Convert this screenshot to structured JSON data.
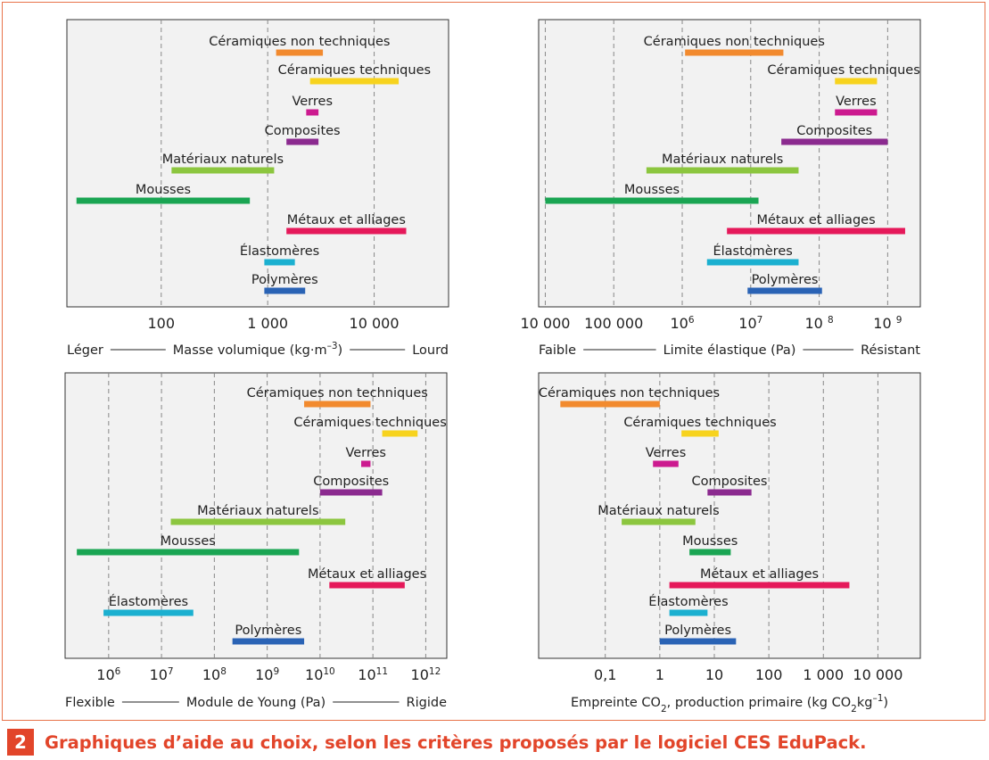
{
  "caption": {
    "number": "2",
    "text": "Graphiques d’aide au choix, selon les critères proposés par le logiciel CES EduPack."
  },
  "chart_data": [
    {
      "type": "bar",
      "orientation": "horizontal-range",
      "log_scale": true,
      "grid": true,
      "xlim": [
        13,
        50000
      ],
      "ticks": [
        {
          "value": 100,
          "label": "100"
        },
        {
          "value": 1000,
          "label": "1 000"
        },
        {
          "value": 10000,
          "label": "10 000"
        }
      ],
      "footer": {
        "left": "Léger",
        "center": "Masse volumique (kg·m",
        "sup": "–3",
        "center_tail": ")",
        "right": "Lourd"
      },
      "series": [
        {
          "name": "Céramiques non techniques",
          "range": [
            1200,
            3300
          ],
          "color": "#f28a2e"
        },
        {
          "name": "Céramiques techniques",
          "range": [
            2500,
            17000
          ],
          "color": "#f7d31e"
        },
        {
          "name": "Verres",
          "range": [
            2300,
            3000
          ],
          "color": "#cc1a8f"
        },
        {
          "name": "Composites",
          "range": [
            1500,
            3000
          ],
          "color": "#8b2a8f"
        },
        {
          "name": "Matériaux naturels",
          "range": [
            125,
            1150
          ],
          "color": "#8cc63f"
        },
        {
          "name": "Mousses",
          "range": [
            16,
            680
          ],
          "color": "#1aa553"
        },
        {
          "name": "Métaux et alliages",
          "range": [
            1500,
            20000
          ],
          "color": "#e5195a"
        },
        {
          "name": "Élastomères",
          "range": [
            930,
            1800
          ],
          "color": "#1bb0d0"
        },
        {
          "name": "Polymères",
          "range": [
            930,
            2250
          ],
          "color": "#2a63b5"
        }
      ]
    },
    {
      "type": "bar",
      "orientation": "horizontal-range",
      "log_scale": true,
      "grid": true,
      "xlim": [
        8000,
        3000000000
      ],
      "ticks": [
        {
          "value": 10000,
          "label": "10 000"
        },
        {
          "value": 100000,
          "label": "100 000"
        },
        {
          "value": 1000000,
          "base": "10",
          "exp": "6"
        },
        {
          "value": 10000000,
          "base": "10",
          "exp": "7"
        },
        {
          "value": 100000000,
          "base": "10 ",
          "exp": "8"
        },
        {
          "value": 1000000000,
          "base": "10 ",
          "exp": "9"
        }
      ],
      "footer": {
        "left": "Faible",
        "center": "Limite élastique (Pa)",
        "right": "Résistant"
      },
      "series": [
        {
          "name": "Céramiques non techniques",
          "range": [
            1100000,
            30000000
          ],
          "color": "#f28a2e"
        },
        {
          "name": "Céramiques techniques",
          "range": [
            170000000,
            700000000
          ],
          "color": "#f7d31e"
        },
        {
          "name": "Verres",
          "range": [
            170000000,
            700000000
          ],
          "color": "#cc1a8f"
        },
        {
          "name": "Composites",
          "range": [
            28000000,
            1000000000
          ],
          "color": "#8b2a8f"
        },
        {
          "name": "Matériaux naturels",
          "range": [
            300000,
            50000000
          ],
          "color": "#8cc63f"
        },
        {
          "name": "Mousses",
          "range": [
            10000,
            13000000
          ],
          "color": "#1aa553"
        },
        {
          "name": "Métaux et alliages",
          "range": [
            4500000,
            1800000000
          ],
          "color": "#e5195a"
        },
        {
          "name": "Élastomères",
          "range": [
            2300000,
            50000000
          ],
          "color": "#1bb0d0"
        },
        {
          "name": "Polymères",
          "range": [
            9000000,
            110000000
          ],
          "color": "#2a63b5"
        }
      ]
    },
    {
      "type": "bar",
      "orientation": "horizontal-range",
      "log_scale": true,
      "grid": true,
      "xlim": [
        150000,
        2500000000000
      ],
      "ticks": [
        {
          "value": 1000000,
          "base": "10",
          "exp": "6"
        },
        {
          "value": 10000000,
          "base": "10",
          "exp": "7"
        },
        {
          "value": 100000000,
          "base": "10",
          "exp": "8"
        },
        {
          "value": 1000000000,
          "base": "10",
          "exp": "9"
        },
        {
          "value": 10000000000,
          "base": "10",
          "exp": "10"
        },
        {
          "value": 100000000000,
          "base": "10",
          "exp": "11"
        },
        {
          "value": 1000000000000,
          "base": "10",
          "exp": "12"
        }
      ],
      "footer": {
        "left": "Flexible",
        "center": "Module de Young (Pa)",
        "right": "Rigide"
      },
      "series": [
        {
          "name": "Céramiques non techniques",
          "range": [
            5000000000,
            90000000000
          ],
          "color": "#f28a2e"
        },
        {
          "name": "Céramiques techniques",
          "range": [
            150000000000,
            700000000000
          ],
          "color": "#f7d31e"
        },
        {
          "name": "Verres",
          "range": [
            60000000000,
            90000000000
          ],
          "color": "#cc1a8f"
        },
        {
          "name": "Composites",
          "range": [
            10000000000,
            150000000000
          ],
          "color": "#8b2a8f"
        },
        {
          "name": "Matériaux naturels",
          "range": [
            15000000,
            30000000000
          ],
          "color": "#8cc63f"
        },
        {
          "name": "Mousses",
          "range": [
            250000,
            4000000000
          ],
          "color": "#1aa553"
        },
        {
          "name": "Métaux et alliages",
          "range": [
            15000000000,
            400000000000
          ],
          "color": "#e5195a"
        },
        {
          "name": "Élastomères",
          "range": [
            800000,
            40000000
          ],
          "color": "#1bb0d0"
        },
        {
          "name": "Polymères",
          "range": [
            220000000,
            5000000000
          ],
          "color": "#2a63b5"
        }
      ]
    },
    {
      "type": "bar",
      "orientation": "horizontal-range",
      "log_scale": true,
      "grid": true,
      "xlim": [
        0.006,
        60000
      ],
      "ticks": [
        {
          "value": 0.1,
          "label": "0,1"
        },
        {
          "value": 1,
          "label": "1"
        },
        {
          "value": 10,
          "label": "10"
        },
        {
          "value": 100,
          "label": "100"
        },
        {
          "value": 1000,
          "label": "1 000"
        },
        {
          "value": 10000,
          "label": "10 000"
        }
      ],
      "footer": {
        "center": "Empreinte CO",
        "center_sub": "2",
        "center_mid": ", production primaire (kg CO",
        "center_sub2": "2",
        "center_tail": "kg",
        "sup": "–1",
        "center_end": ")"
      },
      "series": [
        {
          "name": "Céramiques non techniques",
          "range": [
            0.015,
            1
          ],
          "color": "#f28a2e"
        },
        {
          "name": "Céramiques techniques",
          "range": [
            2.5,
            12
          ],
          "color": "#f7d31e"
        },
        {
          "name": "Verres",
          "range": [
            0.75,
            2.2
          ],
          "color": "#cc1a8f"
        },
        {
          "name": "Composites",
          "range": [
            7.5,
            48
          ],
          "color": "#8b2a8f"
        },
        {
          "name": "Matériaux naturels",
          "range": [
            0.2,
            4.5
          ],
          "color": "#8cc63f"
        },
        {
          "name": "Mousses",
          "range": [
            3.5,
            20
          ],
          "color": "#1aa553"
        },
        {
          "name": "Métaux et alliages",
          "range": [
            1.5,
            3000
          ],
          "color": "#e5195a"
        },
        {
          "name": "Élastomères",
          "range": [
            1.5,
            7.5
          ],
          "color": "#1bb0d0"
        },
        {
          "name": "Polymères",
          "range": [
            1,
            25
          ],
          "color": "#2a63b5"
        }
      ]
    }
  ]
}
